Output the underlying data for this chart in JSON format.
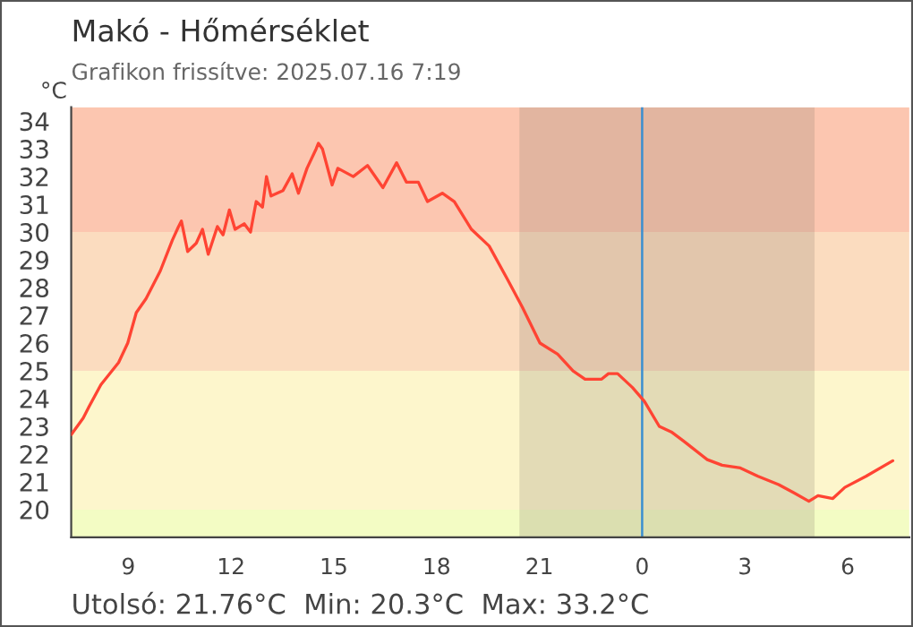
{
  "chart_data": {
    "type": "line",
    "title": "Makó - Hőmérséklet",
    "subtitle": "Grafikon frissítve: 2025.07.16 7:19",
    "ylabel": "°C",
    "annotations": [
      "Utolsó: 21.76°C  Min: 20.3°C  Max: 33.2°C"
    ],
    "x": [
      "2025-07-15T07:20",
      "2025-07-15T07:41",
      "2025-07-15T07:51",
      "2025-07-15T08:12",
      "2025-07-15T08:43",
      "2025-07-15T08:59",
      "2025-07-15T09:14",
      "2025-07-15T09:31",
      "2025-07-15T09:56",
      "2025-07-15T10:17",
      "2025-07-15T10:28",
      "2025-07-15T10:33",
      "2025-07-15T10:44",
      "2025-07-15T10:59",
      "2025-07-15T11:10",
      "2025-07-15T11:20",
      "2025-07-15T11:36",
      "2025-07-15T11:46",
      "2025-07-15T11:57",
      "2025-07-15T12:07",
      "2025-07-15T12:23",
      "2025-07-15T12:34",
      "2025-07-15T12:44",
      "2025-07-15T12:55",
      "2025-07-15T13:02",
      "2025-07-15T13:10",
      "2025-07-15T13:31",
      "2025-07-15T13:47",
      "2025-07-15T13:58",
      "2025-07-15T14:13",
      "2025-07-15T14:29",
      "2025-07-15T14:33",
      "2025-07-15T14:40",
      "2025-07-15T14:57",
      "2025-07-15T15:07",
      "2025-07-15T15:34",
      "2025-07-15T15:59",
      "2025-07-15T16:26",
      "2025-07-15T16:50",
      "2025-07-15T17:07",
      "2025-07-15T17:28",
      "2025-07-15T17:44",
      "2025-07-15T18:10",
      "2025-07-15T18:31",
      "2025-07-15T19:01",
      "2025-07-15T19:32",
      "2025-07-15T20:04",
      "2025-07-15T20:30",
      "2025-07-15T21:01",
      "2025-07-15T21:32",
      "2025-07-15T21:59",
      "2025-07-15T22:20",
      "2025-07-15T22:49",
      "2025-07-15T23:01",
      "2025-07-15T23:17",
      "2025-07-15T23:43",
      "2025-07-16T00:04",
      "2025-07-16T00:30",
      "2025-07-16T00:51",
      "2025-07-16T01:17",
      "2025-07-16T01:54",
      "2025-07-16T02:20",
      "2025-07-16T02:52",
      "2025-07-16T03:23",
      "2025-07-16T03:59",
      "2025-07-16T04:26",
      "2025-07-16T04:52",
      "2025-07-16T05:08",
      "2025-07-16T05:34",
      "2025-07-16T05:55",
      "2025-07-16T06:32",
      "2025-07-16T07:19"
    ],
    "series": [
      {
        "color": "#ff4433",
        "values": [
          22.7,
          23.3,
          23.7,
          24.5,
          25.3,
          26.0,
          27.1,
          27.6,
          28.6,
          29.7,
          30.2,
          30.4,
          29.3,
          29.6,
          30.1,
          29.2,
          30.2,
          29.9,
          30.8,
          30.1,
          30.3,
          30.0,
          31.1,
          30.9,
          32.0,
          31.3,
          31.5,
          32.1,
          31.4,
          32.3,
          33.0,
          33.2,
          33.0,
          31.7,
          32.3,
          32.0,
          32.4,
          31.6,
          32.5,
          31.8,
          31.8,
          31.1,
          31.4,
          31.1,
          30.1,
          29.5,
          28.3,
          27.3,
          26.0,
          25.6,
          25.0,
          24.7,
          24.7,
          24.9,
          24.9,
          24.4,
          23.9,
          23.0,
          22.8,
          22.4,
          21.8,
          21.6,
          21.5,
          21.2,
          20.9,
          20.6,
          20.3,
          20.5,
          20.4,
          20.8,
          21.2,
          21.76
        ]
      }
    ],
    "xlim": [
      "2025-07-15T07:20",
      "2025-07-16T07:48"
    ],
    "ylim": [
      19,
      34.5
    ],
    "xticks": [
      {
        "value": "2025-07-15T09:00",
        "label": "9"
      },
      {
        "value": "2025-07-15T12:00",
        "label": "12"
      },
      {
        "value": "2025-07-15T15:00",
        "label": "15"
      },
      {
        "value": "2025-07-15T18:00",
        "label": "18"
      },
      {
        "value": "2025-07-15T21:00",
        "label": "21"
      },
      {
        "value": "2025-07-16T00:00",
        "label": "0"
      },
      {
        "value": "2025-07-16T03:00",
        "label": "3"
      },
      {
        "value": "2025-07-16T06:00",
        "label": "6"
      }
    ],
    "yticks": [
      20,
      21,
      22,
      23,
      24,
      25,
      26,
      27,
      28,
      29,
      30,
      31,
      32,
      33,
      34
    ],
    "bands": [
      {
        "axis": "y",
        "from": 30,
        "to": 34.5,
        "color": "#fcc6b0"
      },
      {
        "axis": "y",
        "from": 25,
        "to": 30,
        "color": "#fbdcbf"
      },
      {
        "axis": "y",
        "from": 20,
        "to": 25,
        "color": "#fdf6cc"
      },
      {
        "axis": "y",
        "from": 19,
        "to": 20,
        "color": "#f3fcc4"
      },
      {
        "axis": "x",
        "from": "2025-07-15T20:25",
        "to": "2025-07-16T05:02",
        "color": "#8a7a6a"
      }
    ],
    "ref_lines": [
      {
        "axis": "x",
        "value": "2025-07-16T00:00",
        "color": "#3a8fd0"
      }
    ],
    "grid": false,
    "legend": false
  }
}
